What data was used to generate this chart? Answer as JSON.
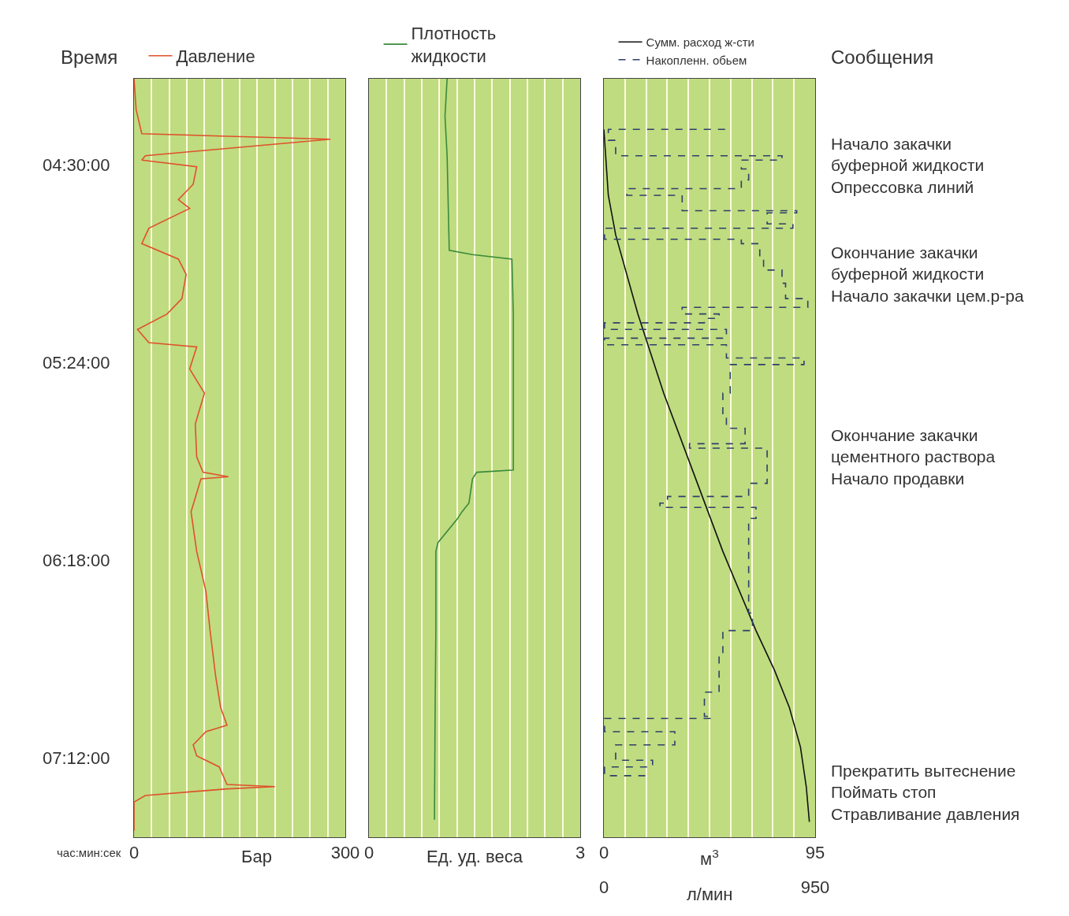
{
  "chart_data": [
    {
      "type": "line",
      "orientation": "horizontal",
      "ylabel": "Время",
      "xlabel": "Бар",
      "annotations": [
        "час:мин:сек"
      ],
      "legend": "top",
      "grid": "x",
      "x": [
        4.11,
        4.25,
        4.36,
        4.385,
        4.46,
        4.48,
        4.51,
        4.59,
        4.66,
        4.7,
        4.79,
        4.86,
        4.93,
        5.0,
        5.11,
        5.18,
        5.25,
        5.31,
        5.33,
        5.43,
        5.54,
        5.68,
        5.83,
        5.9,
        5.92,
        5.93,
        6.08,
        6.26,
        6.44,
        6.62,
        6.83,
        6.97,
        7.05,
        7.08,
        7.14,
        7.19,
        7.24,
        7.32,
        7.33,
        7.34,
        7.37,
        7.4,
        7.53
      ],
      "series": [
        {
          "name": "Давление",
          "color": "#e0502a",
          "values": [
            0,
            3,
            11,
            279,
            16,
            11,
            89,
            84,
            63,
            79,
            21,
            11,
            63,
            74,
            68,
            47,
            5,
            21,
            89,
            79,
            100,
            87,
            89,
            98,
            134,
            95,
            81,
            89,
            102,
            108,
            116,
            123,
            132,
            102,
            84,
            89,
            121,
            132,
            200,
            132,
            16,
            0,
            0
          ]
        }
      ],
      "xlim": [
        0,
        300
      ],
      "xticks": [
        0,
        {
          "value": 25,
          "label": null
        },
        {
          "value": 50,
          "label": null
        },
        {
          "value": 75,
          "label": null
        },
        {
          "value": 100,
          "label": null
        },
        {
          "value": 125,
          "label": null
        },
        {
          "value": 150,
          "label": null
        },
        {
          "value": 175,
          "label": null
        },
        {
          "value": 200,
          "label": null
        },
        {
          "value": 225,
          "label": null
        },
        {
          "value": 250,
          "label": null
        },
        {
          "value": 275,
          "label": null
        },
        300
      ],
      "ylim": [
        7.56,
        4.11
      ],
      "yticks": [
        {
          "value": 4.5,
          "label": "04:30:00"
        },
        {
          "value": 5.4,
          "label": "05:24:00"
        },
        {
          "value": 6.3,
          "label": "06:18:00"
        },
        {
          "value": 7.2,
          "label": "07:12:00"
        }
      ]
    },
    {
      "type": "line",
      "orientation": "horizontal",
      "xlabel": "Ед. уд. веса",
      "legend": "top",
      "grid": "x",
      "tick_labels": "x",
      "x": [
        4.11,
        4.28,
        4.46,
        4.89,
        4.91,
        4.93,
        5.18,
        5.89,
        5.9,
        5.93,
        6.04,
        6.08,
        6.11,
        6.22,
        6.26,
        6.62,
        6.97,
        7.48
      ],
      "series": [
        {
          "name": "Плотность\nжидкости",
          "color": "#3a8a3a",
          "values": [
            1.11,
            1.08,
            1.11,
            1.14,
            1.47,
            2.03,
            2.05,
            2.05,
            1.53,
            1.47,
            1.42,
            1.32,
            1.26,
            0.98,
            0.95,
            0.95,
            0.94,
            0.93
          ]
        }
      ],
      "xlim": [
        0,
        3
      ],
      "xticks": [
        0,
        {
          "value": 0.25,
          "label": null
        },
        {
          "value": 0.5,
          "label": null
        },
        {
          "value": 0.75,
          "label": null
        },
        {
          "value": 1,
          "label": null
        },
        {
          "value": 1.25,
          "label": null
        },
        {
          "value": 1.5,
          "label": null
        },
        {
          "value": 1.75,
          "label": null
        },
        {
          "value": 2,
          "label": null
        },
        {
          "value": 2.25,
          "label": null
        },
        {
          "value": 2.5,
          "label": null
        },
        {
          "value": 2.75,
          "label": null
        },
        3
      ],
      "ylim": [
        7.56,
        4.11
      ]
    },
    {
      "type": "line",
      "orientation": "horizontal",
      "xlabel": "м$^{3}$",
      "x2label": "л/мин",
      "legend": "top",
      "grid": "x",
      "tick_labels": "x",
      "annotations": [
        "Сообщения",
        "Начало закачки\nбуферной жидкости\nОпрессовка линий",
        "Окончание закачки\nбуферной жидкости\nНачало закачки цем.р-ра",
        "Окончание закачки\nцементного раствора\nНачало продавки",
        "Прекратить вытеснение\nПоймать стоп\nСтравливание давления"
      ],
      "series": [
        {
          "name": "Сумм. расход ж-сти",
          "color": "#111111",
          "line_style": "solid",
          "x": [
            4.34,
            4.64,
            4.82,
            5.18,
            5.54,
            5.9,
            6.26,
            6.62,
            6.8,
            6.97,
            7.15,
            7.33,
            7.49
          ],
          "values": [
            0,
            2.0,
            5.3,
            15.3,
            26.9,
            40.2,
            53.5,
            68.4,
            76.7,
            83.4,
            88.4,
            91.0,
            92.4
          ]
        },
        {
          "name": "Накопленн. обьем",
          "type": "step",
          "axis": "x2",
          "color": "#2f3f6a",
          "line_style": "dashed",
          "x": [
            4.34,
            4.34,
            4.39,
            4.46,
            4.48,
            4.52,
            4.57,
            4.61,
            4.64,
            4.68,
            4.71,
            4.72,
            4.77,
            4.79,
            4.84,
            4.86,
            4.93,
            4.98,
            5.04,
            5.11,
            5.15,
            5.18,
            5.2,
            5.22,
            5.25,
            5.29,
            5.32,
            5.38,
            5.41,
            5.54,
            5.65,
            5.7,
            5.77,
            5.79,
            5.95,
            6.01,
            6.04,
            6.06,
            6.11,
            6.4,
            6.54,
            6.62,
            6.72,
            6.9,
            7.01,
            7.02,
            7.08,
            7.14,
            7.21,
            7.24,
            7.28
          ],
          "values": [
            545,
            20,
            53,
            801,
            618,
            651,
            618,
            103,
            352,
            352,
            867,
            734,
            850,
            3,
            618,
            701,
            718,
            801,
            817,
            917,
            352,
            518,
            452,
            3,
            551,
            3,
            551,
            900,
            568,
            535,
            551,
            635,
            385,
            734,
            651,
            286,
            252,
            684,
            651,
            651,
            668,
            535,
            518,
            452,
            485,
            3,
            319,
            53,
            219,
            3,
            186
          ]
        }
      ],
      "xlim": [
        0,
        95
      ],
      "xticks": [
        0,
        {
          "value": 9.5,
          "label": null
        },
        {
          "value": 19,
          "label": null
        },
        {
          "value": 28.5,
          "label": null
        },
        {
          "value": 38,
          "label": null
        },
        {
          "value": 47.5,
          "label": null
        },
        {
          "value": 57,
          "label": null
        },
        {
          "value": 66.5,
          "label": null
        },
        {
          "value": 76,
          "label": null
        },
        {
          "value": 85.5,
          "label": null
        },
        95
      ],
      "x2lim": [
        0,
        950
      ],
      "x2ticks": [
        0,
        950
      ],
      "ylim": [
        7.56,
        4.11
      ]
    }
  ]
}
